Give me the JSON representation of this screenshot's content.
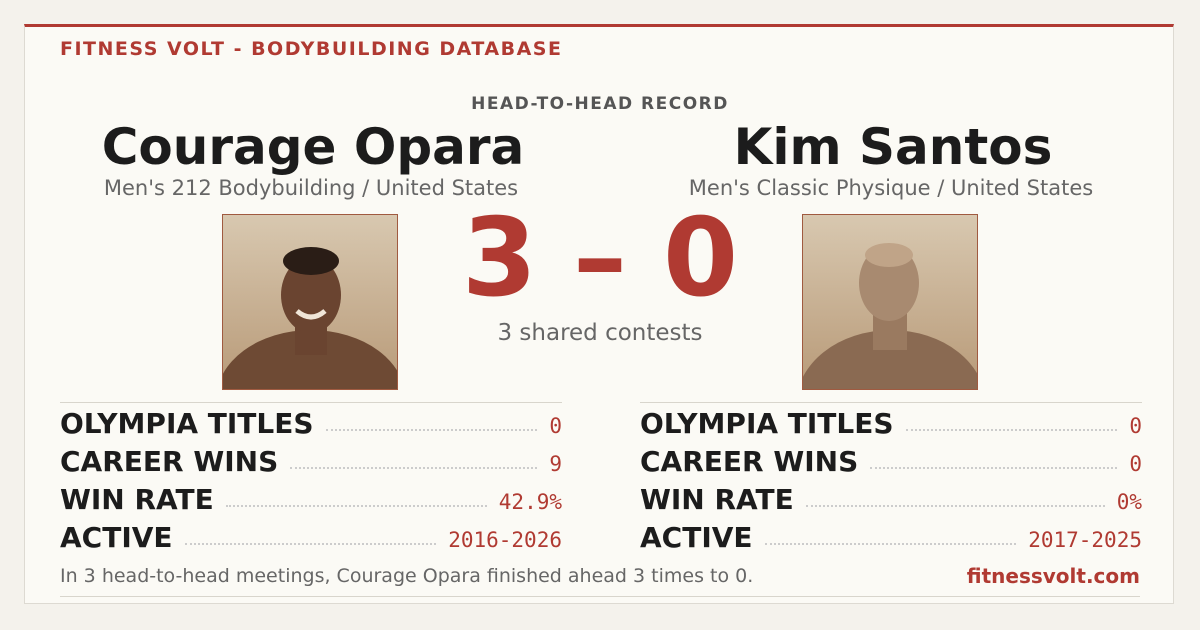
{
  "header": {
    "title": "FITNESS VOLT - BODYBUILDING DATABASE",
    "subtitle": "HEAD-TO-HEAD RECORD"
  },
  "athletes": [
    {
      "name": "Courage Opara",
      "division": "Men's 212 Bodybuilding / United States",
      "stats": [
        {
          "label": "OLYMPIA TITLES",
          "value": "0"
        },
        {
          "label": "CAREER WINS",
          "value": "9"
        },
        {
          "label": "WIN RATE",
          "value": "42.9%"
        },
        {
          "label": "ACTIVE",
          "value": "2016-2026"
        }
      ]
    },
    {
      "name": "Kim Santos",
      "division": "Men's Classic Physique / United States",
      "stats": [
        {
          "label": "OLYMPIA TITLES",
          "value": "0"
        },
        {
          "label": "CAREER WINS",
          "value": "0"
        },
        {
          "label": "WIN RATE",
          "value": "0%"
        },
        {
          "label": "ACTIVE",
          "value": "2017-2025"
        }
      ]
    }
  ],
  "score": {
    "left": "3",
    "separator": "–",
    "right": "0",
    "note": "3 shared contests"
  },
  "footer": {
    "summary": "In 3 head-to-head meetings, Courage Opara finished ahead 3 times to 0.",
    "site": "fitnessvolt.com"
  }
}
